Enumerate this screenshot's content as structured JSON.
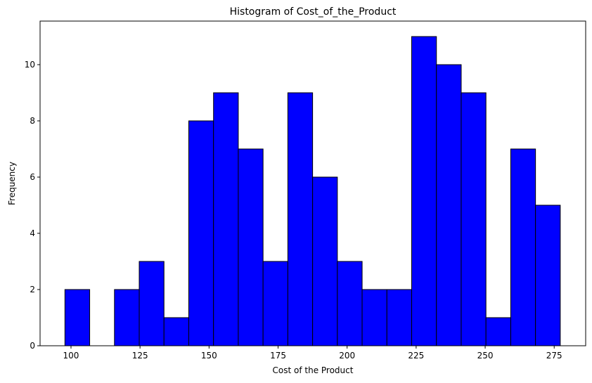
{
  "chart_data": {
    "type": "bar",
    "title": "Histogram of Cost_of_the_Product",
    "xlabel": "Cost of the Product",
    "ylabel": "Frequency",
    "bin_start": 97.8,
    "bin_width": 8.97,
    "values": [
      2,
      0,
      2,
      3,
      1,
      8,
      9,
      7,
      3,
      9,
      6,
      3,
      2,
      2,
      11,
      10,
      9,
      1,
      7,
      5
    ],
    "xlim": [
      88.8,
      286.4
    ],
    "ylim": [
      0,
      11.55
    ],
    "xticks": [
      100,
      125,
      150,
      175,
      200,
      225,
      250,
      275
    ],
    "yticks": [
      0,
      2,
      4,
      6,
      8,
      10
    ],
    "bar_color": "#0000ff",
    "edge_color": "#000000",
    "grid": false
  }
}
